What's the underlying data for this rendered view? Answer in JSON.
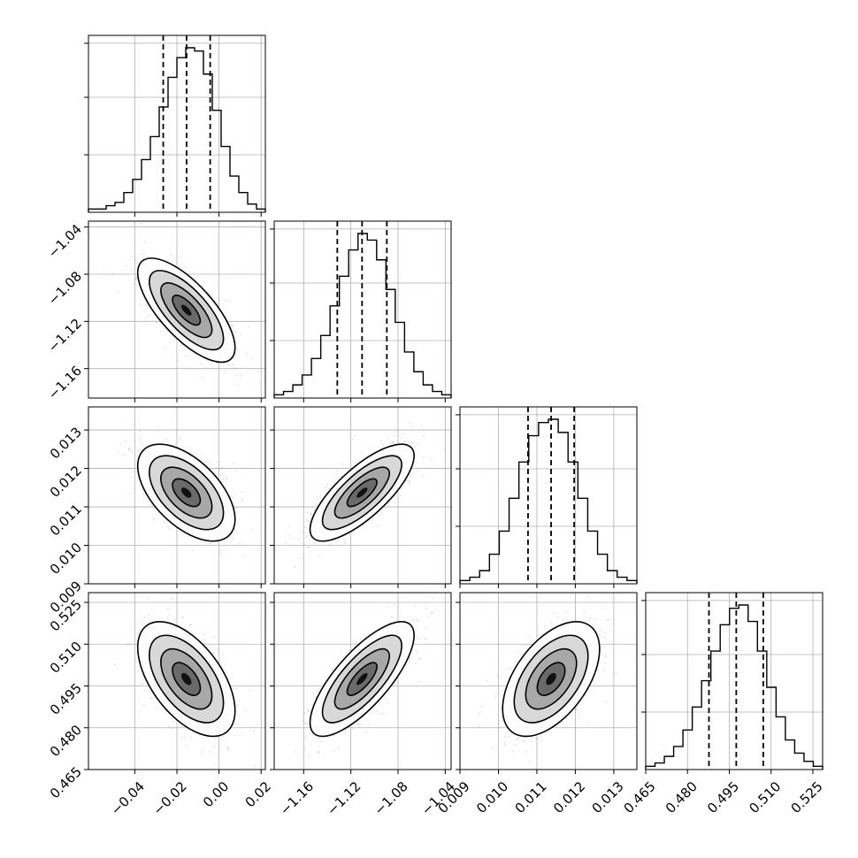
{
  "chart_data": {
    "type": "corner",
    "grid": true,
    "params": [
      {
        "range": [
          -0.062,
          0.022
        ],
        "ticks": [
          -0.04,
          -0.02,
          0.0,
          0.02
        ],
        "tick_labels": [
          "−0.04",
          "−0.02",
          "0.00",
          "0.02"
        ],
        "quantiles": [
          -0.0265,
          -0.0154,
          -0.0042
        ],
        "hist_bins": [
          2,
          2,
          4,
          6,
          12,
          20,
          32,
          46,
          64,
          82,
          94,
          100,
          98,
          84,
          62,
          40,
          22,
          12,
          5,
          2
        ]
      },
      {
        "range": [
          -1.185,
          -1.035
        ],
        "ticks": [
          -1.16,
          -1.12,
          -1.08,
          -1.04
        ],
        "tick_labels": [
          "−1.16",
          "−1.12",
          "−1.08",
          "−1.04"
        ],
        "quantiles": [
          -1.1315,
          -1.1105,
          -1.0895
        ],
        "hist_bins": [
          2,
          4,
          8,
          14,
          24,
          38,
          56,
          74,
          90,
          100,
          96,
          84,
          66,
          46,
          28,
          16,
          8,
          4,
          2
        ]
      },
      {
        "range": [
          0.009,
          0.0136
        ],
        "ticks": [
          0.009,
          0.01,
          0.011,
          0.012,
          0.013
        ],
        "tick_labels": [
          "0.009",
          "0.010",
          "0.011",
          "0.012",
          "0.013"
        ],
        "quantiles": [
          0.01077,
          0.01137,
          0.01197
        ],
        "hist_bins": [
          2,
          4,
          8,
          18,
          32,
          52,
          74,
          90,
          98,
          100,
          92,
          74,
          52,
          32,
          18,
          8,
          4,
          2
        ]
      },
      {
        "range": [
          0.465,
          0.5285
        ],
        "ticks": [
          0.465,
          0.48,
          0.495,
          0.51,
          0.525
        ],
        "tick_labels": [
          "0.465",
          "0.480",
          "0.495",
          "0.510",
          "0.525"
        ],
        "quantiles": [
          0.4877,
          0.4975,
          0.5072
        ],
        "hist_bins": [
          2,
          4,
          8,
          14,
          24,
          38,
          54,
          72,
          88,
          98,
          100,
          90,
          72,
          50,
          32,
          18,
          10,
          5,
          2
        ]
      }
    ],
    "pairs": [
      {
        "row": 1,
        "col": 0,
        "mean": [
          -0.0155,
          -1.1105
        ],
        "sd": [
          0.011,
          0.021
        ],
        "rho": -0.72
      },
      {
        "row": 2,
        "col": 0,
        "mean": [
          -0.0155,
          0.01137
        ],
        "sd": [
          0.011,
          0.0006
        ],
        "rho": -0.55
      },
      {
        "row": 2,
        "col": 1,
        "mean": [
          -1.1105,
          0.01137
        ],
        "sd": [
          0.021,
          0.0006
        ],
        "rho": 0.76
      },
      {
        "row": 3,
        "col": 0,
        "mean": [
          -0.0155,
          0.4975
        ],
        "sd": [
          0.011,
          0.0098
        ],
        "rho": -0.55
      },
      {
        "row": 3,
        "col": 1,
        "mean": [
          -1.1105,
          0.4975
        ],
        "sd": [
          0.021,
          0.0098
        ],
        "rho": 0.76
      },
      {
        "row": 3,
        "col": 2,
        "mean": [
          0.01137,
          0.4975
        ],
        "sd": [
          0.0006,
          0.0098
        ],
        "rho": 0.52
      }
    ]
  },
  "colors": {
    "axis": "#000000",
    "grid": "#b0b0b0",
    "scatter": "#9a9a9a",
    "hist": "#000000"
  }
}
